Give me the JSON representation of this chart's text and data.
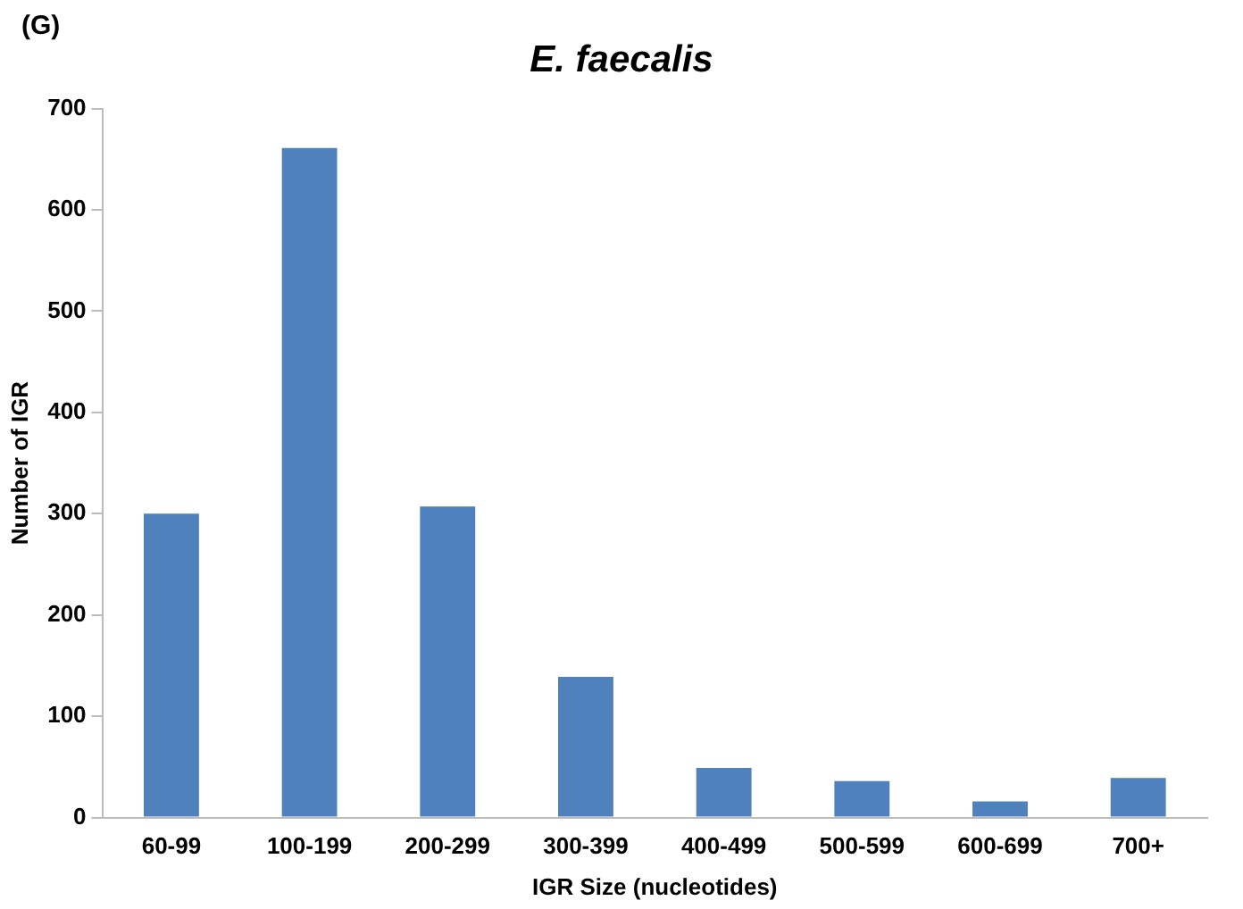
{
  "chart_data": {
    "type": "bar",
    "title": "E. faecalis",
    "xlabel": "IGR Size (nucleotides)",
    "ylabel": "Number of IGR",
    "categories": [
      "60-99",
      "100-199",
      "200-299",
      "300-399",
      "400-499",
      "500-599",
      "600-699",
      "700+"
    ],
    "values": [
      300,
      661,
      307,
      139,
      49,
      36,
      16,
      39
    ],
    "color": "#4f81bd",
    "ylim": [
      0,
      700
    ],
    "yticks": [
      0,
      100,
      200,
      300,
      400,
      500,
      600,
      700
    ],
    "grid": false,
    "legend": false,
    "annotations": [
      "(G)"
    ]
  }
}
